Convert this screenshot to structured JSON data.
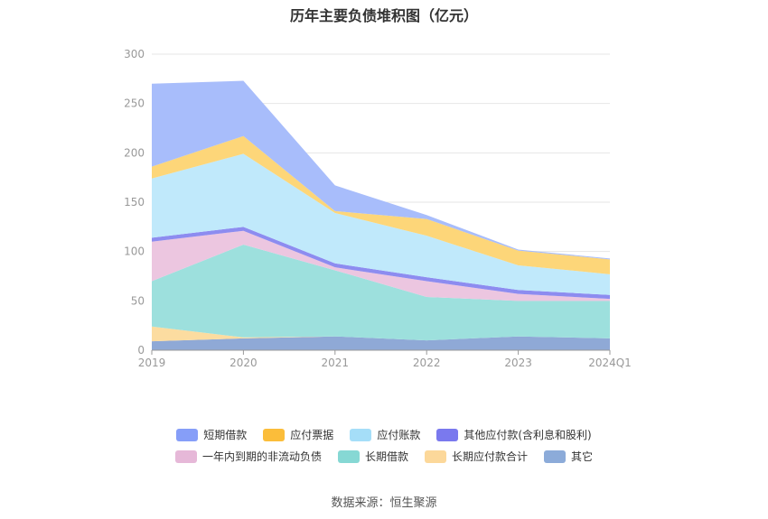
{
  "chart_data": {
    "type": "area",
    "stacked": true,
    "title": "历年主要负债堆积图（亿元）",
    "categories": [
      "2019",
      "2020",
      "2021",
      "2022",
      "2023",
      "2024Q1"
    ],
    "ylim": [
      0,
      300
    ],
    "yticks": [
      0,
      50,
      100,
      150,
      200,
      250,
      300
    ],
    "grid": true,
    "legend_position": "bottom",
    "series": [
      {
        "name": "其它",
        "color": "#8fa9d6",
        "values": [
          9,
          12,
          14,
          10,
          14,
          12
        ]
      },
      {
        "name": "长期应付款合计",
        "color": "#fcdca0",
        "values": [
          15,
          1,
          0,
          0,
          0,
          0
        ]
      },
      {
        "name": "长期借款",
        "color": "#9de0dd",
        "values": [
          46,
          94,
          67,
          44,
          36,
          38
        ]
      },
      {
        "name": "一年内到期的非流动负债",
        "color": "#ecc6e0",
        "values": [
          40,
          14,
          3,
          16,
          7,
          2
        ]
      },
      {
        "name": "其他应付款(含利息和股利)",
        "color": "#8d8cf0",
        "values": [
          4,
          4,
          4,
          4,
          4,
          4
        ]
      },
      {
        "name": "应付账款",
        "color": "#c0e9fb",
        "values": [
          60,
          74,
          51,
          42,
          25,
          21
        ]
      },
      {
        "name": "应付票据",
        "color": "#fdd679",
        "values": [
          12,
          18,
          2,
          17,
          15,
          15
        ]
      },
      {
        "name": "短期借款",
        "color": "#a8bdfb",
        "values": [
          84,
          56,
          26,
          4,
          1,
          1
        ]
      }
    ],
    "legend": [
      {
        "name": "短期借款",
        "color": "#869ef8"
      },
      {
        "name": "应付票据",
        "color": "#fbbd3a"
      },
      {
        "name": "应付账款",
        "color": "#a5def8"
      },
      {
        "name": "其他应付款(含利息和股利)",
        "color": "#7a79ee"
      },
      {
        "name": "一年内到期的非流动负债",
        "color": "#e6b8d8"
      },
      {
        "name": "长期借款",
        "color": "#86d8d4"
      },
      {
        "name": "长期应付款合计",
        "color": "#fcd89a"
      },
      {
        "name": "其它",
        "color": "#8cabd9"
      }
    ]
  },
  "source": "数据来源：恒生聚源"
}
